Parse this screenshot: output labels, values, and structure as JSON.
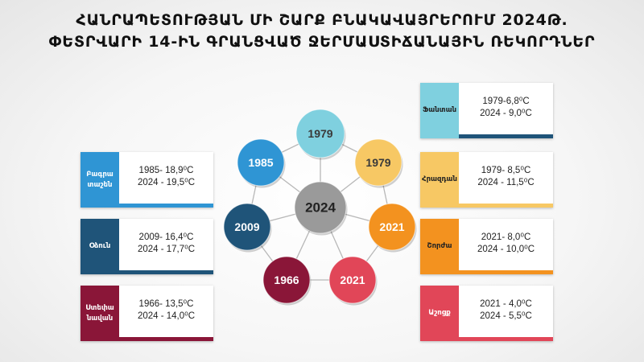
{
  "title": {
    "line1": "ՀԱՆՐԱՊԵՏՈՒԹՅԱՆ ՄԻ ՇԱՐՔ ԲՆԱԿԱՎԱՅՐԵՐՈՒՄ 2024Թ.",
    "line2": "ՓԵՏՐՎԱՐԻ 14-ԻՆ ԳՐԱՆՑՎԱԾ ՋԵՐՄԱՍՏԻՃԱՆԱՅԻՆ ՌԵԿՈՐԴՆԵՐ"
  },
  "center": {
    "label": "2024",
    "color": "#9a9a9a"
  },
  "nodes": [
    {
      "label": "1979",
      "color": "#7fd0df",
      "text_color": "#3a3a3a"
    },
    {
      "label": "1979",
      "color": "#f7c864",
      "text_color": "#3a3a3a"
    },
    {
      "label": "2021",
      "color": "#f3921f",
      "text_color": "#ffffff"
    },
    {
      "label": "2021",
      "color": "#e14658",
      "text_color": "#ffffff"
    },
    {
      "label": "1966",
      "color": "#8a1638",
      "text_color": "#ffffff"
    },
    {
      "label": "2009",
      "color": "#1f5479",
      "text_color": "#ffffff"
    },
    {
      "label": "1985",
      "color": "#2f95d4",
      "text_color": "#ffffff"
    }
  ],
  "cards_left": [
    {
      "station": "Բագրա\nտաշեն",
      "record_old": "1985- 18,9⁰C",
      "record_new": "2024 - 19,5⁰C",
      "color": "#2f95d4",
      "text_color": "#ffffff"
    },
    {
      "station": "Օձուն",
      "record_old": "2009- 16,4⁰C",
      "record_new": "2024 - 17,7⁰C",
      "color": "#1f5479",
      "text_color": "#ffffff"
    },
    {
      "station": "Ստեփա\nնավան",
      "record_old": "1966- 13,5⁰C",
      "record_new": "2024 - 14,0⁰C",
      "color": "#8a1638",
      "text_color": "#ffffff"
    }
  ],
  "cards_right": [
    {
      "station": "Ֆանտան",
      "record_old": "1979-6,8⁰C",
      "record_new": "2024 - 9,0⁰C",
      "color": "#7fd0df",
      "text_color": "#222222",
      "bar_color": "#1f5479"
    },
    {
      "station": "Հրազդան",
      "record_old": "1979- 8,5⁰C",
      "record_new": "2024 - 11,5⁰C",
      "color": "#f7c864",
      "text_color": "#222222",
      "bar_color": "#f7c864"
    },
    {
      "station": "Շորժա",
      "record_old": "2021- 8,0⁰C",
      "record_new": "2024 - 10,0⁰C",
      "color": "#f3921f",
      "text_color": "#222222",
      "bar_color": "#f3921f"
    },
    {
      "station": "Աշոցք",
      "record_old": "2021 - 4,0⁰C",
      "record_new": "2024 - 5,5⁰C",
      "color": "#e14658",
      "text_color": "#ffffff",
      "bar_color": "#e14658"
    }
  ]
}
